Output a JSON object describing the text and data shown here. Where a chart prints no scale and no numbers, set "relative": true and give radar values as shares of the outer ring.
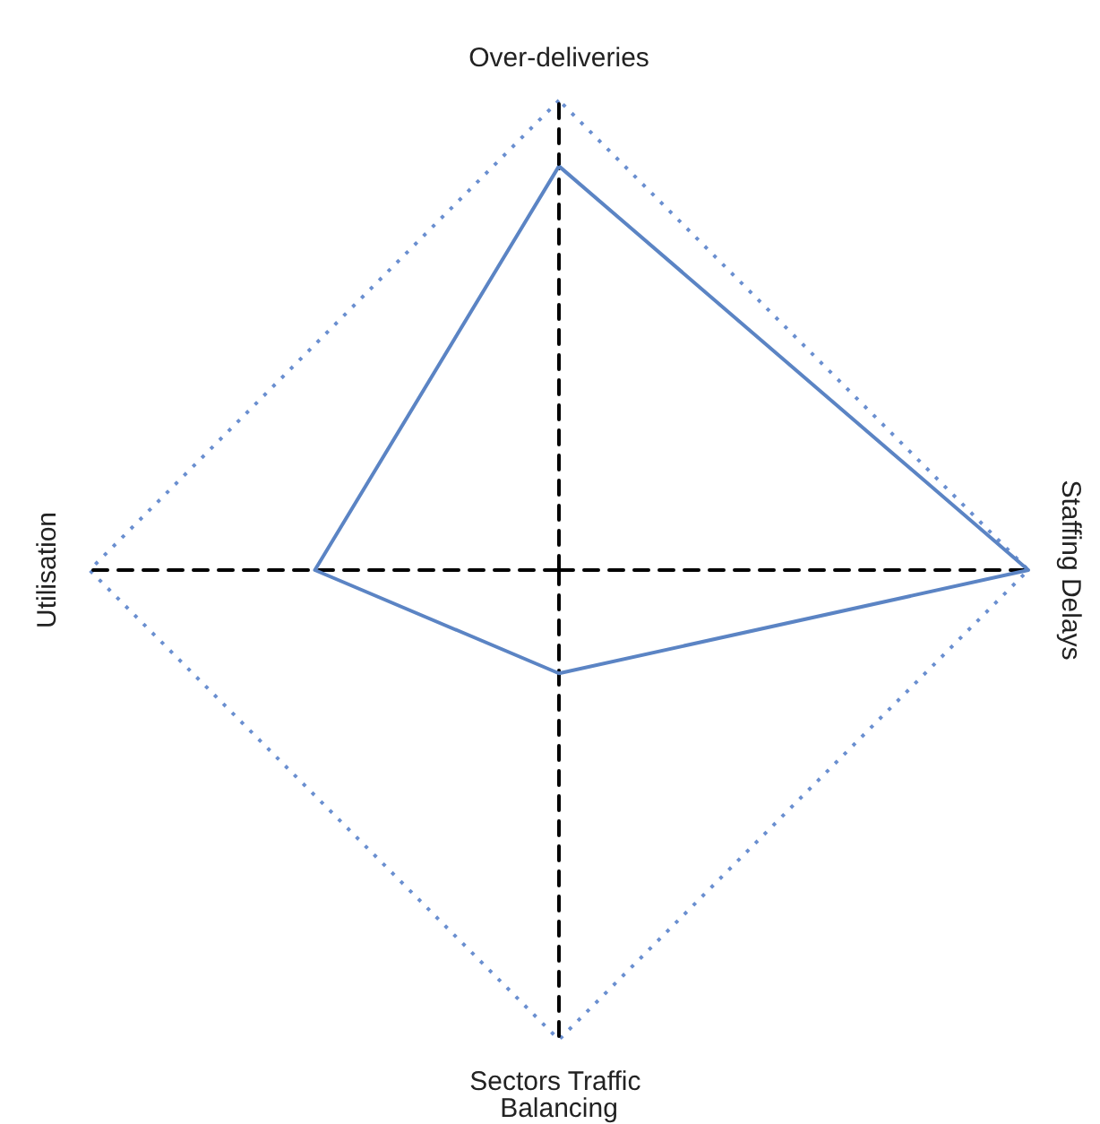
{
  "chart_data": {
    "type": "radar",
    "relative": true,
    "categories": [
      "Over-deliveries",
      "Staffing Delays",
      "Sectors Traffic Balancing",
      "Utilisation"
    ],
    "series": [
      {
        "color": "#5b84c4",
        "values": [
          0.86,
          1.0,
          0.22,
          0.52
        ]
      }
    ],
    "marker": "none",
    "line_style": "solid"
  }
}
